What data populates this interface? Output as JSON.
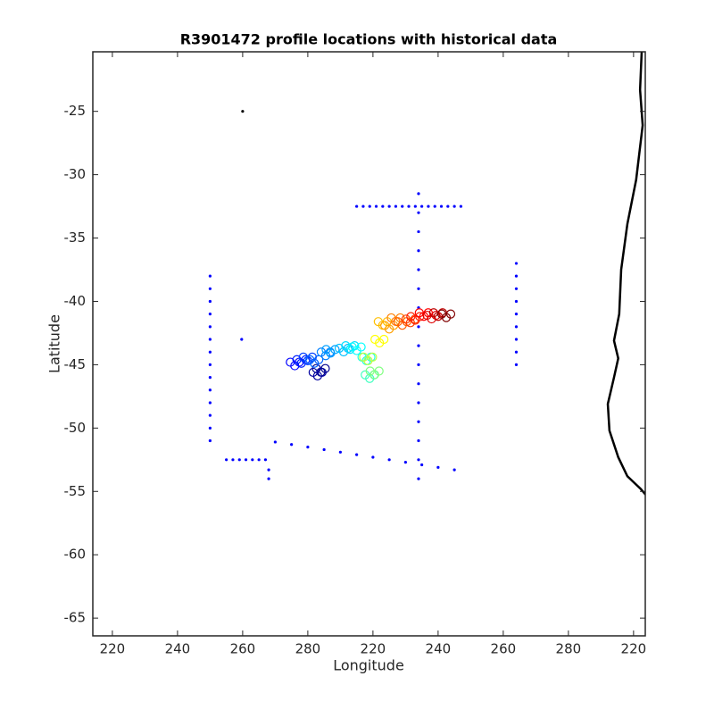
{
  "chart_data": {
    "type": "scatter",
    "title": "R3901472 profile locations with historical data",
    "x_label": "Longitude",
    "y_label": "Latitude",
    "xlim": [
      214,
      383.6
    ],
    "ylim": [
      -66.4,
      -20.3
    ],
    "xticks": [
      {
        "value": 220,
        "label": "220"
      },
      {
        "value": 240,
        "label": "240"
      },
      {
        "value": 260,
        "label": "260"
      },
      {
        "value": 280,
        "label": "280"
      },
      {
        "value": 300,
        "label": "220"
      },
      {
        "value": 320,
        "label": "240"
      },
      {
        "value": 340,
        "label": "260"
      },
      {
        "value": 360,
        "label": "280"
      },
      {
        "value": 380,
        "label": "220"
      }
    ],
    "yticks": [
      -25,
      -30,
      -35,
      -40,
      -45,
      -50,
      -55,
      -60,
      -65
    ],
    "series": [
      {
        "mode": "dots",
        "color": "#0000ff",
        "x": [
          250,
          250,
          250,
          250,
          250,
          250,
          250,
          250,
          250,
          250,
          250,
          250,
          250,
          250,
          314,
          314,
          314,
          314,
          314,
          314,
          314,
          314,
          314,
          314,
          314,
          314,
          314,
          314,
          314,
          314,
          295,
          297,
          299,
          301,
          303,
          305,
          307,
          309,
          311,
          313,
          315,
          317,
          319,
          321,
          323,
          325,
          327,
          344,
          344,
          344,
          344,
          344,
          344,
          344,
          344,
          344,
          270,
          275,
          280,
          285,
          290,
          295,
          300,
          305,
          310,
          315,
          320,
          325,
          255,
          257,
          259,
          261,
          263,
          265,
          267,
          268,
          268,
          259.7
        ],
        "y": [
          -38,
          -39,
          -40,
          -41,
          -42,
          -43,
          -44,
          -45,
          -46,
          -47,
          -48,
          -49,
          -50,
          -51,
          -31.5,
          -33,
          -34.5,
          -36,
          -37.5,
          -39,
          -40.5,
          -42,
          -43.5,
          -45,
          -46.5,
          -48,
          -49.5,
          -51,
          -52.5,
          -54,
          -32.5,
          -32.5,
          -32.5,
          -32.5,
          -32.5,
          -32.5,
          -32.5,
          -32.5,
          -32.5,
          -32.5,
          -32.5,
          -32.5,
          -32.5,
          -32.5,
          -32.5,
          -32.5,
          -32.5,
          -37,
          -38,
          -39,
          -40,
          -41,
          -42,
          -43,
          -44,
          -45,
          -51.1,
          -51.3,
          -51.5,
          -51.7,
          -51.9,
          -52.1,
          -52.3,
          -52.5,
          -52.7,
          -52.9,
          -53.1,
          -53.3,
          -52.5,
          -52.5,
          -52.5,
          -52.5,
          -52.5,
          -52.5,
          -52.5,
          -53.3,
          -54,
          -43
        ]
      },
      {
        "mode": "rings",
        "x": [
          284,
          283,
          276,
          278,
          280,
          282,
          285.5,
          287,
          291,
          293,
          295,
          298,
          299,
          300.5,
          298.5,
          302,
          303,
          305,
          307,
          309,
          311.5,
          313,
          315.6,
          318,
          320,
          322.5
        ],
        "y": [
          -45.3,
          -45.6,
          -44.8,
          -44.6,
          -44.4,
          -44.6,
          -44,
          -43.8,
          -43.7,
          -43.5,
          -43.6,
          -44.4,
          -45.8,
          -45.5,
          -44.4,
          -43,
          -41.6,
          -41.9,
          -41.3,
          -41.6,
          -41.4,
          -41.2,
          -40.9,
          -41.1,
          -40.9,
          -41
        ],
        "colors": [
          "#00008f",
          "#00009f",
          "#0000ff",
          "#0020ff",
          "#0040ff",
          "#0060ff",
          "#0080ff",
          "#00a0ff",
          "#00bfff",
          "#00dfff",
          "#00ffff",
          "#20ffdf",
          "#40ffbf",
          "#80ff80",
          "#bfff40",
          "#ffff00",
          "#ffbf00",
          "#ffa000",
          "#ff8000",
          "#ff6000",
          "#ff4000",
          "#ff2000",
          "#ff0000",
          "#df0000",
          "#bf0000",
          "#800000"
        ]
      },
      {
        "mode": "line",
        "color": "#000000",
        "x": [
          382.5,
          382,
          382.8,
          380.8,
          378.1,
          376.2,
          375.6,
          374,
          375.3,
          374,
          372.1,
          372.6,
          375.3,
          378.1,
          382.2,
          385.5
        ],
        "y": [
          -20.3,
          -23.3,
          -26.1,
          -30.4,
          -33.9,
          -37.5,
          -41,
          -43.1,
          -44.5,
          -46,
          -48.1,
          -50.2,
          -52.3,
          -53.8,
          -54.8,
          -55.8
        ]
      },
      {
        "mode": "dots",
        "color": "#000000",
        "x": [
          260
        ],
        "y": [
          -25
        ]
      }
    ]
  }
}
